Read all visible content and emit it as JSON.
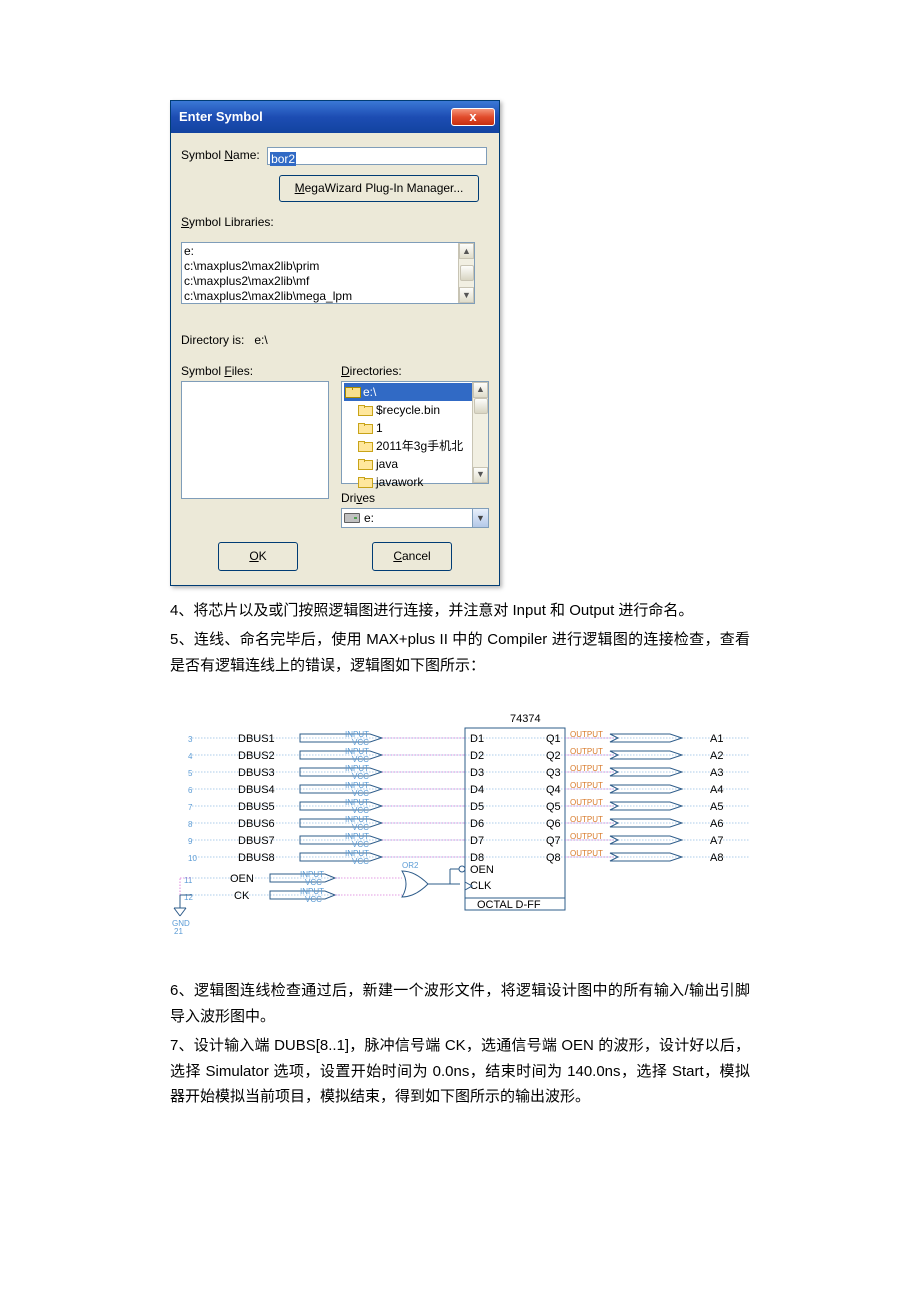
{
  "dialog": {
    "title": "Enter Symbol",
    "close_x": "x",
    "symbol_name_label_pre": "Symbol ",
    "symbol_name_label_u": "N",
    "symbol_name_label_post": "ame:",
    "symbol_name_value": "bor2",
    "megawizard_u": "M",
    "megawizard_rest": "egaWizard Plug-In Manager...",
    "symbol_libs_u": "S",
    "symbol_libs_rest": "ymbol Libraries:",
    "lib_items": [
      "e:",
      "c:\\maxplus2\\max2lib\\prim",
      "c:\\maxplus2\\max2lib\\mf",
      "c:\\maxplus2\\max2lib\\mega_lpm"
    ],
    "directory_is_label": "Directory is:",
    "directory_is_value": "e:\\",
    "symbol_files_label_pre": "Symbol ",
    "symbol_files_label_u": "F",
    "symbol_files_label_post": "iles:",
    "directories_u": "D",
    "directories_rest": "irectories:",
    "dir_items": [
      "e:\\",
      "$recycle.bin",
      "1",
      "2011年3g手机北",
      "java",
      "javawork"
    ],
    "drives_pre": "Dri",
    "drives_u": "v",
    "drives_post": "es",
    "drive_value": "e:",
    "ok_u": "O",
    "ok_rest": "K",
    "cancel_u": "C",
    "cancel_rest": "ancel"
  },
  "para4": "4、将芯片以及或门按照逻辑图进行连接，并注意对 Input 和 Output 进行命名。",
  "para5": "5、连线、命名完毕后，使用 MAX+plus II 中的 Compiler 进行逻辑图的连接检查，查看是否有逻辑连线上的错误，逻辑图如下图所示：",
  "para6": "6、逻辑图连线检查通过后，新建一个波形文件，将逻辑设计图中的所有输入/输出引脚导入波形图中。",
  "para7": "7、设计输入端 DUBS[8..1]，脉冲信号端 CK，选通信号端 OEN 的波形，设计好以后，选择 Simulator 选项，设置开始时间为 0.0ns，结束时间为 140.0ns，选择 Start，模拟器开始模拟当前项目，模拟结束，得到如下图所示的输出波形。",
  "schematic": {
    "chip_label": "74374",
    "footer_label": "OCTAL D-FF",
    "inputs": [
      "DBUS1",
      "DBUS2",
      "DBUS3",
      "DBUS4",
      "DBUS5",
      "DBUS6",
      "DBUS7",
      "DBUS8"
    ],
    "d_pins": [
      "D1",
      "D2",
      "D3",
      "D4",
      "D5",
      "D6",
      "D7",
      "D8"
    ],
    "q_pins": [
      "Q1",
      "Q2",
      "Q3",
      "Q4",
      "Q5",
      "Q6",
      "Q7",
      "Q8"
    ],
    "outputs": [
      "A1",
      "A2",
      "A3",
      "A4",
      "A5",
      "A6",
      "A7",
      "A8"
    ],
    "oen_in": "OEN",
    "oen_pin": "OEN",
    "ck_in": "CK",
    "clk_pin": "CLK",
    "gnd_label": "GND",
    "input_tag": "INPUT",
    "vcc_tag": "VCC",
    "output_tag": "OUTPUT",
    "or2_tag": "OR2",
    "row_nums": [
      "3",
      "4",
      "5",
      "6",
      "7",
      "8",
      "9",
      "10",
      "11",
      "12"
    ],
    "gnd_num": "21",
    "colors": {
      "wire": "#2e5c8a",
      "dotted": "#5b9bd5",
      "magenta": "#c838c8",
      "input_tag": "#5b9bd5",
      "output_tag": "#d87a2a",
      "text": "#000000"
    }
  }
}
